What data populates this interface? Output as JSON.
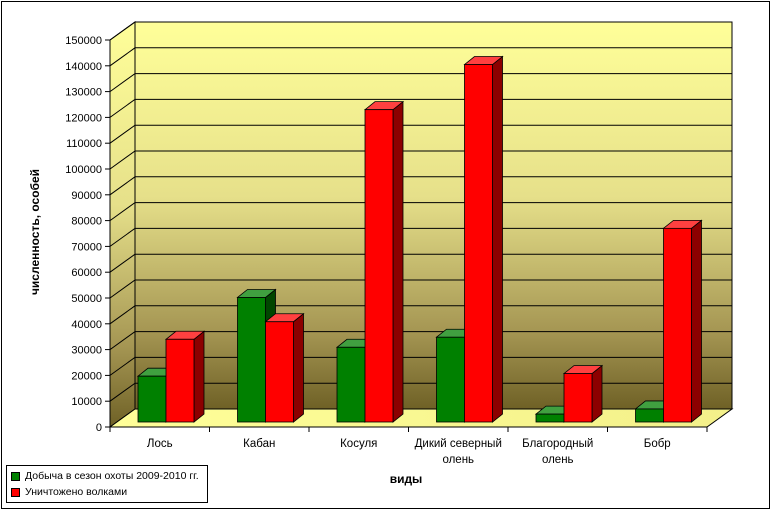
{
  "chart_data": {
    "type": "bar",
    "title": "",
    "xlabel": "виды",
    "ylabel": "численность, особей",
    "ylim": [
      0,
      150000
    ],
    "ytick_step": 10000,
    "grid": true,
    "three_d": true,
    "legend_position": "bottom-left",
    "categories": [
      "Лось",
      "Кабан",
      "Косуля",
      "Дикий северный олень",
      "Благородный олень",
      "Бобр"
    ],
    "category_lines": [
      [
        "Лось"
      ],
      [
        "Кабан"
      ],
      [
        "Косуля"
      ],
      [
        "Дикий северный",
        "олень"
      ],
      [
        "Благородный",
        "олень"
      ],
      [
        "Бобр"
      ]
    ],
    "series": [
      {
        "name": "Добыча в сезон охоты 2009-2010 гг.",
        "color": "#008000",
        "values": [
          19700,
          50200,
          30900,
          34800,
          5000,
          7000
        ]
      },
      {
        "name": "Уничтожено волками",
        "color": "#ff0000",
        "values": [
          34000,
          40800,
          123000,
          140500,
          20700,
          77000
        ]
      }
    ],
    "wall_gradient": [
      "#ffff99",
      "#7a6a2c"
    ]
  }
}
